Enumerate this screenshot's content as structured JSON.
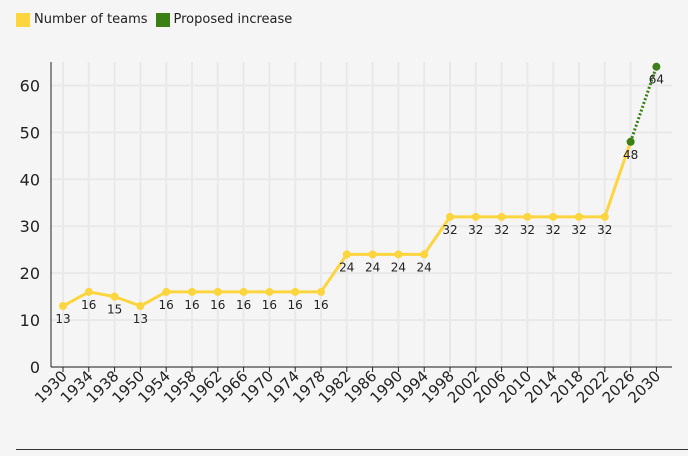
{
  "legend": {
    "teams_label": "Number of teams",
    "proposed_label": "Proposed increase"
  },
  "colors": {
    "teams": "#fcd53f",
    "proposed": "#3b7f16",
    "grid": "#e9e9e9",
    "axis": "#222222",
    "text": "#222222",
    "background": "#f5f5f5"
  },
  "chart_data": {
    "type": "line",
    "title": "",
    "xlabel": "",
    "ylabel": "",
    "ylim": [
      0,
      65
    ],
    "yticks": [
      0,
      10,
      20,
      30,
      40,
      50,
      60
    ],
    "grid": true,
    "legend_position": "top-left",
    "categories": [
      "1930",
      "1934",
      "1938",
      "1950",
      "1954",
      "1958",
      "1962",
      "1966",
      "1970",
      "1974",
      "1978",
      "1982",
      "1986",
      "1990",
      "1994",
      "1998",
      "2002",
      "2006",
      "2010",
      "2014",
      "2018",
      "2022",
      "2026",
      "2030"
    ],
    "series": [
      {
        "name": "Number of teams",
        "color": "#fcd53f",
        "values": [
          13,
          16,
          15,
          13,
          16,
          16,
          16,
          16,
          16,
          16,
          16,
          24,
          24,
          24,
          24,
          32,
          32,
          32,
          32,
          32,
          32,
          32,
          48,
          null
        ]
      },
      {
        "name": "Proposed increase",
        "color": "#3b7f16",
        "values": [
          null,
          null,
          null,
          null,
          null,
          null,
          null,
          null,
          null,
          null,
          null,
          null,
          null,
          null,
          null,
          null,
          null,
          null,
          null,
          null,
          null,
          null,
          48,
          64
        ]
      }
    ],
    "data_labels": [
      "13",
      "16",
      "15",
      "13",
      "16",
      "16",
      "16",
      "16",
      "16",
      "16",
      "16",
      "24",
      "24",
      "24",
      "24",
      "32",
      "32",
      "32",
      "32",
      "32",
      "32",
      "32",
      "48",
      "64"
    ]
  }
}
